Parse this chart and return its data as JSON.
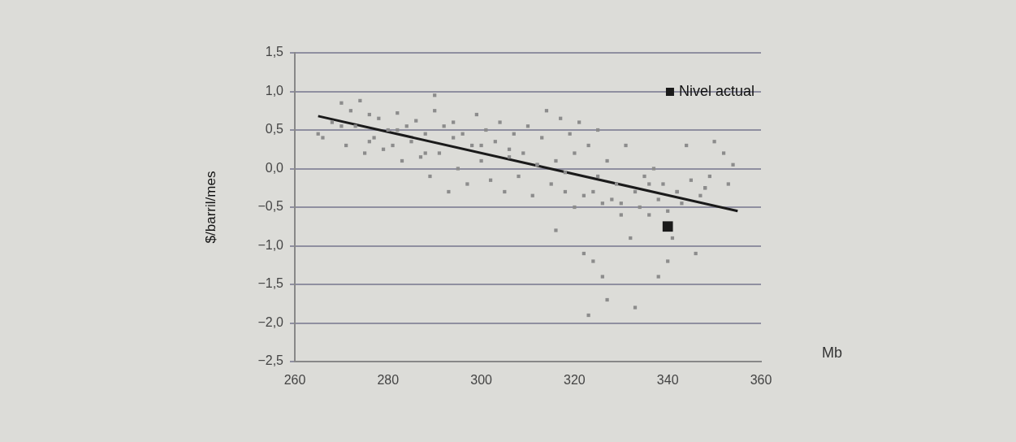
{
  "chart_data": {
    "type": "scatter",
    "xlabel": "Mb",
    "ylabel": "$/barril/mes",
    "xlim": [
      260,
      360
    ],
    "xticks": [
      260,
      280,
      300,
      320,
      340,
      360
    ],
    "ylim": [
      -2.5,
      1.5
    ],
    "yticks": [
      {
        "value": 1.5,
        "label": "1,5"
      },
      {
        "value": 1,
        "label": "1,0"
      },
      {
        "value": 0.5,
        "label": "0,5"
      },
      {
        "value": 0,
        "label": "0,0"
      },
      {
        "value": -0.5,
        "label": "−0,5"
      },
      {
        "value": -1,
        "label": "−1,0"
      },
      {
        "value": -1.5,
        "label": "−1,5"
      },
      {
        "value": -2,
        "label": "−2,0"
      },
      {
        "value": -2.5,
        "label": "−2,5"
      }
    ],
    "grid": "y",
    "legend": "top right",
    "marker": "square",
    "series": [
      {
        "color": "#8c8c8c",
        "x": [
          265,
          266,
          268,
          270,
          271,
          272,
          273,
          274,
          275,
          276,
          277,
          278,
          279,
          280,
          281,
          282,
          283,
          284,
          285,
          286,
          287,
          288,
          289,
          290,
          290,
          291,
          292,
          293,
          294,
          295,
          296,
          297,
          298,
          299,
          300,
          301,
          302,
          303,
          304,
          305,
          306,
          307,
          308,
          309,
          310,
          311,
          312,
          313,
          314,
          315,
          316,
          316,
          317,
          318,
          319,
          320,
          320,
          321,
          322,
          322,
          323,
          323,
          324,
          325,
          325,
          326,
          326,
          327,
          327,
          328,
          329,
          330,
          331,
          332,
          333,
          333,
          334,
          335,
          336,
          337,
          338,
          338,
          339,
          340,
          340,
          341,
          342,
          343,
          344,
          345,
          346,
          347,
          348,
          349,
          350,
          352,
          353,
          354,
          270,
          276,
          282,
          288,
          294,
          300,
          306,
          312,
          318,
          324,
          330,
          336,
          342,
          348
        ],
        "values": [
          0.45,
          0.4,
          0.6,
          0.85,
          0.3,
          0.75,
          0.55,
          0.88,
          0.2,
          0.7,
          0.4,
          0.65,
          0.25,
          0.5,
          0.3,
          0.72,
          0.1,
          0.55,
          0.35,
          0.62,
          0.15,
          0.45,
          -0.1,
          0.75,
          0.95,
          0.2,
          0.55,
          -0.3,
          0.6,
          0.0,
          0.45,
          -0.2,
          0.3,
          0.7,
          0.1,
          0.5,
          -0.15,
          0.35,
          0.6,
          -0.3,
          0.25,
          0.45,
          -0.1,
          0.2,
          0.55,
          -0.35,
          0.05,
          0.4,
          0.75,
          -0.2,
          -0.8,
          0.1,
          0.65,
          -0.3,
          0.45,
          -0.5,
          0.2,
          0.6,
          -1.1,
          -0.35,
          -1.9,
          0.3,
          -1.2,
          -0.1,
          0.5,
          -1.4,
          -0.45,
          -1.7,
          0.1,
          -0.4,
          -0.2,
          -0.6,
          0.3,
          -0.9,
          -1.8,
          -0.3,
          -0.5,
          -0.1,
          -0.6,
          0.0,
          -0.4,
          -1.4,
          -0.2,
          -1.2,
          -0.55,
          -0.9,
          -0.3,
          -0.45,
          0.3,
          -0.15,
          -1.1,
          -0.35,
          -0.25,
          -0.1,
          0.35,
          0.2,
          -0.2,
          0.05,
          0.55,
          0.35,
          0.5,
          0.2,
          0.4,
          0.3,
          0.15,
          0.05,
          -0.05,
          -0.3,
          -0.45,
          -0.2,
          -0.3,
          -0.25
        ]
      },
      {
        "type": "line",
        "color": "#1a1a1a",
        "x": [
          265,
          355
        ],
        "values": [
          0.68,
          -0.55
        ],
        "marker": "none"
      },
      {
        "name": "Nivel actual",
        "color": "#1a1a1a",
        "x": [
          340
        ],
        "values": [
          -0.75
        ]
      }
    ]
  }
}
